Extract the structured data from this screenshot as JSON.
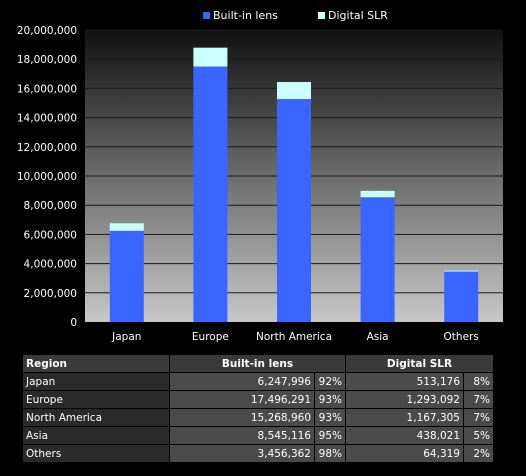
{
  "chart_data": {
    "type": "bar",
    "stacked": true,
    "categories": [
      "Japan",
      "Europe",
      "North America",
      "Asia",
      "Others"
    ],
    "series": [
      {
        "name": "Built-in lens",
        "color": "#3a66ff",
        "values": [
          6247996,
          17496291,
          15268960,
          8545116,
          3456362
        ]
      },
      {
        "name": "Digital SLR",
        "color": "#ccffff",
        "values": [
          513176,
          1293092,
          1167305,
          438021,
          64319
        ]
      }
    ],
    "ylim": [
      0,
      20000000
    ],
    "yticks": [
      "0",
      "2,000,000",
      "4,000,000",
      "6,000,000",
      "8,000,000",
      "10,000,000",
      "12,000,000",
      "14,000,000",
      "16,000,000",
      "18,000,000",
      "20,000,000"
    ],
    "ytick_values": [
      0,
      2000000,
      4000000,
      6000000,
      8000000,
      10000000,
      12000000,
      14000000,
      16000000,
      18000000,
      20000000
    ],
    "grid": true,
    "legend_position": "top-center",
    "background": "gradient dark-to-light gray"
  },
  "table": {
    "header_region": "Region",
    "header_builtin": "Built-in lens",
    "header_slr": "Digital SLR",
    "rows": [
      {
        "region": "Japan",
        "builtin": "6,247,996",
        "builtin_pct": "92%",
        "slr": "513,176",
        "slr_pct": "8%"
      },
      {
        "region": "Europe",
        "builtin": "17,496,291",
        "builtin_pct": "93%",
        "slr": "1,293,092",
        "slr_pct": "7%"
      },
      {
        "region": "North America",
        "builtin": "15,268,960",
        "builtin_pct": "93%",
        "slr": "1,167,305",
        "slr_pct": "7%"
      },
      {
        "region": "Asia",
        "builtin": "8,545,116",
        "builtin_pct": "95%",
        "slr": "438,021",
        "slr_pct": "5%"
      },
      {
        "region": "Others",
        "builtin": "3,456,362",
        "builtin_pct": "98%",
        "slr": "64,319",
        "slr_pct": "2%"
      }
    ]
  }
}
